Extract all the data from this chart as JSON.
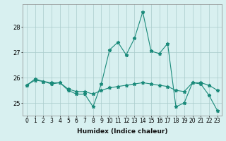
{
  "xlabel": "Humidex (Indice chaleur)",
  "x": [
    0,
    1,
    2,
    3,
    4,
    5,
    6,
    7,
    8,
    9,
    10,
    11,
    12,
    13,
    14,
    15,
    16,
    17,
    18,
    19,
    20,
    21,
    22,
    23
  ],
  "line1": [
    25.7,
    25.9,
    25.85,
    25.8,
    25.8,
    25.5,
    25.35,
    25.35,
    24.85,
    25.75,
    27.1,
    27.4,
    26.9,
    27.55,
    28.6,
    27.05,
    26.95,
    27.35,
    24.85,
    25.0,
    25.8,
    25.75,
    25.3,
    24.7
  ],
  "line2": [
    25.7,
    25.95,
    25.85,
    25.75,
    25.8,
    25.55,
    25.45,
    25.45,
    25.35,
    25.5,
    25.6,
    25.65,
    25.7,
    25.75,
    25.8,
    25.75,
    25.7,
    25.65,
    25.5,
    25.45,
    25.8,
    25.8,
    25.7,
    25.5
  ],
  "line_color": "#1a8a7a",
  "background_color": "#d8f0f0",
  "grid_color": "#aacccc",
  "ylim": [
    24.5,
    28.9
  ],
  "yticks": [
    25,
    26,
    27,
    28
  ],
  "xticks": [
    0,
    1,
    2,
    3,
    4,
    5,
    6,
    7,
    8,
    9,
    10,
    11,
    12,
    13,
    14,
    15,
    16,
    17,
    18,
    19,
    20,
    21,
    22,
    23
  ],
  "marker": "*",
  "linewidth": 0.8,
  "markersize": 3.5,
  "tick_fontsize": 5.5,
  "xlabel_fontsize": 6.5
}
